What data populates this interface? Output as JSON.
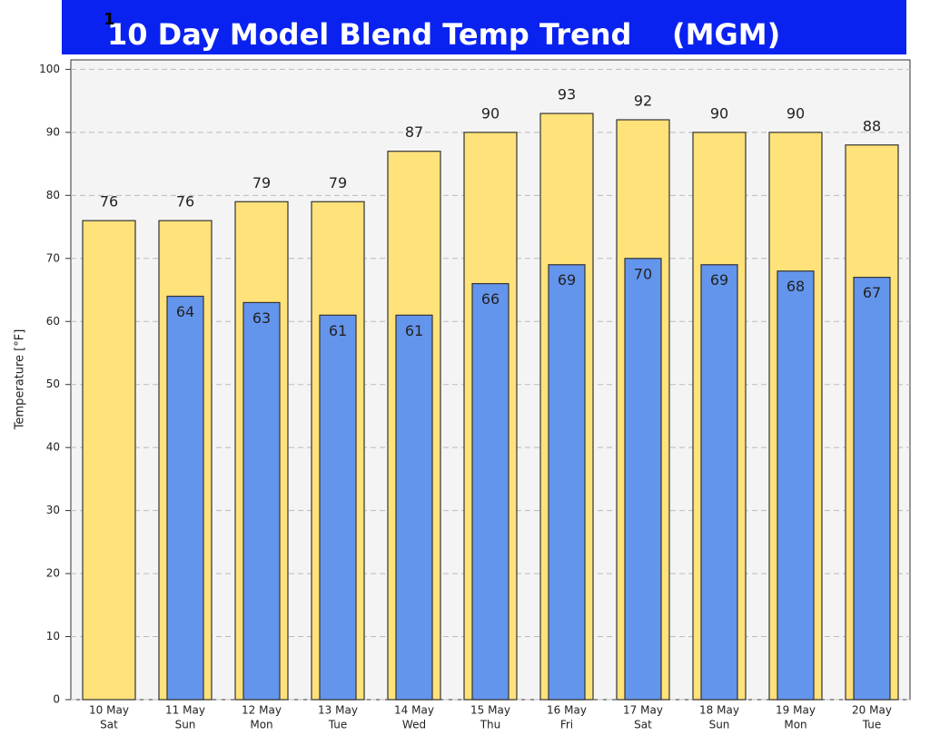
{
  "chart_data": {
    "type": "bar",
    "title": "10 Day Model Blend Temp Trend    (MGM)",
    "annotation": "1",
    "y_label": "Temperature [°F]",
    "categories": [
      [
        "10 May",
        "Sat"
      ],
      [
        "11 May",
        "Sun"
      ],
      [
        "12 May",
        "Mon"
      ],
      [
        "13 May",
        "Tue"
      ],
      [
        "14 May",
        "Wed"
      ],
      [
        "15 May",
        "Thu"
      ],
      [
        "16 May",
        "Fri"
      ],
      [
        "17 May",
        "Sat"
      ],
      [
        "18 May",
        "Sun"
      ],
      [
        "19 May",
        "Mon"
      ],
      [
        "20 May",
        "Tue"
      ]
    ],
    "series": [
      {
        "color": "#ffe27a",
        "values": [
          76,
          76,
          79,
          79,
          87,
          90,
          93,
          92,
          90,
          90,
          88
        ]
      },
      {
        "color": "#6495ed",
        "values": [
          null,
          64,
          63,
          61,
          61,
          66,
          69,
          70,
          69,
          68,
          67
        ]
      }
    ],
    "ylim": [
      0,
      101.5
    ],
    "yticks": [
      0,
      10,
      20,
      30,
      40,
      50,
      60,
      70,
      80,
      90,
      100
    ],
    "grid": true
  }
}
